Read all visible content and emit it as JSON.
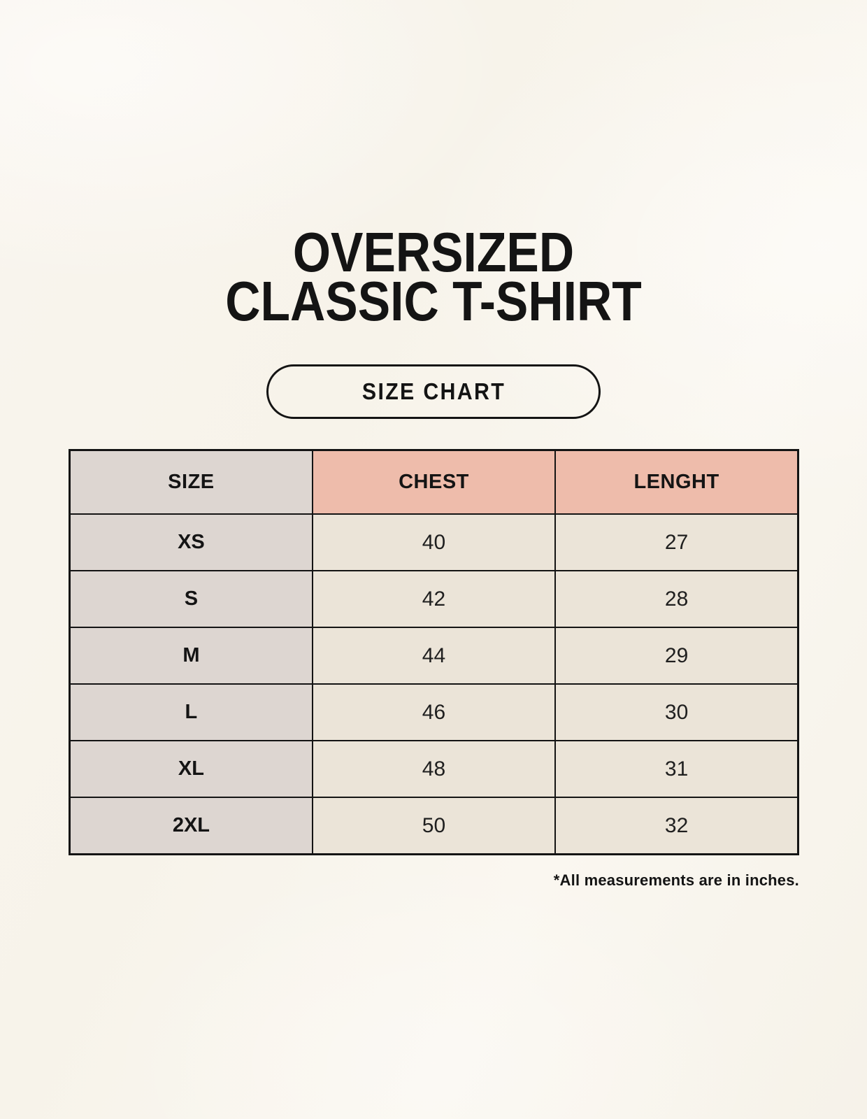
{
  "title": {
    "line1": "OVERSIZED",
    "line2": "CLASSIC T-SHIRT"
  },
  "badge": {
    "label": "SIZE CHART"
  },
  "size_table": {
    "headers": [
      "SIZE",
      "CHEST",
      "LENGHT"
    ],
    "rows": [
      {
        "size": "XS",
        "chest": "40",
        "length": "27"
      },
      {
        "size": "S",
        "chest": "42",
        "length": "28"
      },
      {
        "size": "M",
        "chest": "44",
        "length": "29"
      },
      {
        "size": "L",
        "chest": "46",
        "length": "30"
      },
      {
        "size": "XL",
        "chest": "48",
        "length": "31"
      },
      {
        "size": "2XL",
        "chest": "50",
        "length": "32"
      }
    ]
  },
  "footnote": "*All measurements are in inches.",
  "chart_data": {
    "type": "table",
    "title": "OVERSIZED CLASSIC T-SHIRT — SIZE CHART",
    "columns": [
      "SIZE",
      "CHEST",
      "LENGHT"
    ],
    "rows": [
      [
        "XS",
        40,
        27
      ],
      [
        "S",
        42,
        28
      ],
      [
        "M",
        44,
        29
      ],
      [
        "L",
        46,
        30
      ],
      [
        "XL",
        48,
        31
      ],
      [
        "2XL",
        50,
        32
      ]
    ],
    "note": "*All measurements are in inches."
  },
  "colors": {
    "background": "#f8f4ec",
    "accent_header": "#eebcab",
    "gray_column": "#ddd6d1",
    "data_cell": "#ebe4d8",
    "border": "#141414",
    "text": "#141414"
  }
}
